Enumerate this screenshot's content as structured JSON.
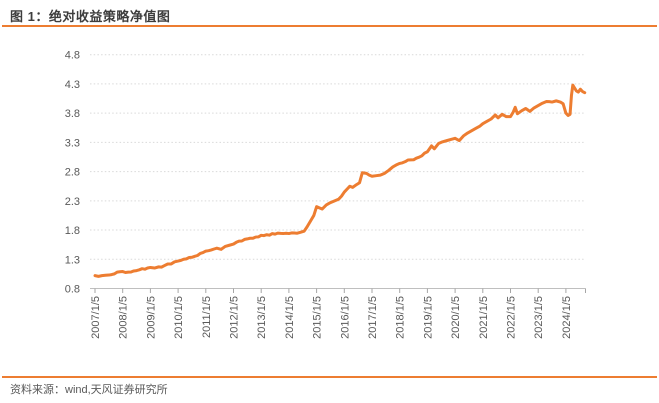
{
  "figure": {
    "title": "图 1：绝对收益策略净值图",
    "source": "资料来源：wind,天风证券研究所"
  },
  "colors": {
    "accent_orange": "#ED7D31",
    "line": "#ED7D31",
    "grid": "#D9D9D9",
    "axis": "#BFBFBF",
    "tick": "#A6A6A6",
    "label_text": "#595959",
    "title_text": "#3D3D3D"
  },
  "chart_data": {
    "type": "line",
    "title": "绝对收益策略净值图",
    "xlabel": "",
    "ylabel": "",
    "legend": "none",
    "grid": "horizontal-dotted",
    "ylim": [
      0.8,
      4.8
    ],
    "y_ticks": [
      0.8,
      1.3,
      1.8,
      2.3,
      2.8,
      3.3,
      3.8,
      4.3,
      4.8
    ],
    "x_tick_labels": [
      "2007/1/5",
      "2008/1/5",
      "2009/1/5",
      "2010/1/5",
      "2011/1/5",
      "2012/1/5",
      "2013/1/5",
      "2014/1/5",
      "2015/1/5",
      "2016/1/5",
      "2017/1/5",
      "2018/1/5",
      "2019/1/5",
      "2020/1/5",
      "2021/1/5",
      "2022/1/5",
      "2023/1/5",
      "2024/1/5"
    ],
    "x_range_years": [
      2007.0,
      2024.7
    ],
    "series": [
      {
        "name": "绝对收益策略净值",
        "color": "#ED7D31",
        "x": [
          2007.0,
          2007.25,
          2007.5,
          2007.7,
          2007.8,
          2008.0,
          2008.2,
          2008.4,
          2008.6,
          2008.8,
          2009.0,
          2009.15,
          2009.3,
          2009.5,
          2009.75,
          2010.0,
          2010.2,
          2010.4,
          2010.6,
          2010.8,
          2011.0,
          2011.2,
          2011.4,
          2011.55,
          2011.7,
          2011.85,
          2012.0,
          2012.2,
          2012.4,
          2012.6,
          2012.8,
          2013.0,
          2013.2,
          2013.5,
          2013.8,
          2014.0,
          2014.2,
          2014.4,
          2014.55,
          2014.65,
          2014.8,
          2014.9,
          2015.0,
          2015.1,
          2015.2,
          2015.35,
          2015.5,
          2015.65,
          2015.8,
          2015.9,
          2016.0,
          2016.1,
          2016.2,
          2016.3,
          2016.45,
          2016.55,
          2016.65,
          2016.8,
          2016.9,
          2017.0,
          2017.15,
          2017.3,
          2017.45,
          2017.6,
          2017.75,
          2017.9,
          2018.0,
          2018.2,
          2018.4,
          2018.6,
          2018.8,
          2019.0,
          2019.15,
          2019.25,
          2019.4,
          2019.55,
          2019.7,
          2019.85,
          2020.0,
          2020.15,
          2020.3,
          2020.45,
          2020.6,
          2020.75,
          2020.9,
          2021.0,
          2021.15,
          2021.3,
          2021.45,
          2021.55,
          2021.7,
          2021.85,
          2022.0,
          2022.1,
          2022.17,
          2022.25,
          2022.4,
          2022.55,
          2022.7,
          2022.85,
          2023.0,
          2023.15,
          2023.3,
          2023.5,
          2023.65,
          2023.8,
          2023.9,
          2024.0,
          2024.08,
          2024.15,
          2024.2,
          2024.25,
          2024.3,
          2024.38,
          2024.45,
          2024.52,
          2024.6,
          2024.68
        ],
        "values": [
          1.02,
          1.02,
          1.03,
          1.05,
          1.08,
          1.09,
          1.08,
          1.1,
          1.12,
          1.13,
          1.16,
          1.15,
          1.17,
          1.19,
          1.22,
          1.27,
          1.3,
          1.33,
          1.35,
          1.4,
          1.44,
          1.46,
          1.49,
          1.47,
          1.52,
          1.54,
          1.56,
          1.61,
          1.64,
          1.66,
          1.68,
          1.71,
          1.72,
          1.73,
          1.74,
          1.74,
          1.75,
          1.76,
          1.78,
          1.85,
          1.97,
          2.05,
          2.2,
          2.18,
          2.16,
          2.23,
          2.27,
          2.3,
          2.33,
          2.38,
          2.45,
          2.5,
          2.55,
          2.53,
          2.58,
          2.61,
          2.78,
          2.77,
          2.74,
          2.72,
          2.73,
          2.74,
          2.77,
          2.82,
          2.88,
          2.92,
          2.94,
          2.97,
          3.0,
          3.03,
          3.07,
          3.14,
          3.24,
          3.19,
          3.28,
          3.31,
          3.33,
          3.35,
          3.37,
          3.33,
          3.41,
          3.46,
          3.5,
          3.54,
          3.58,
          3.62,
          3.66,
          3.7,
          3.77,
          3.72,
          3.78,
          3.74,
          3.74,
          3.82,
          3.9,
          3.79,
          3.84,
          3.88,
          3.83,
          3.89,
          3.93,
          3.97,
          4.0,
          3.99,
          4.01,
          3.99,
          3.96,
          3.8,
          3.76,
          3.78,
          4.1,
          4.28,
          4.24,
          4.18,
          4.16,
          4.21,
          4.17,
          4.15
        ]
      }
    ]
  }
}
